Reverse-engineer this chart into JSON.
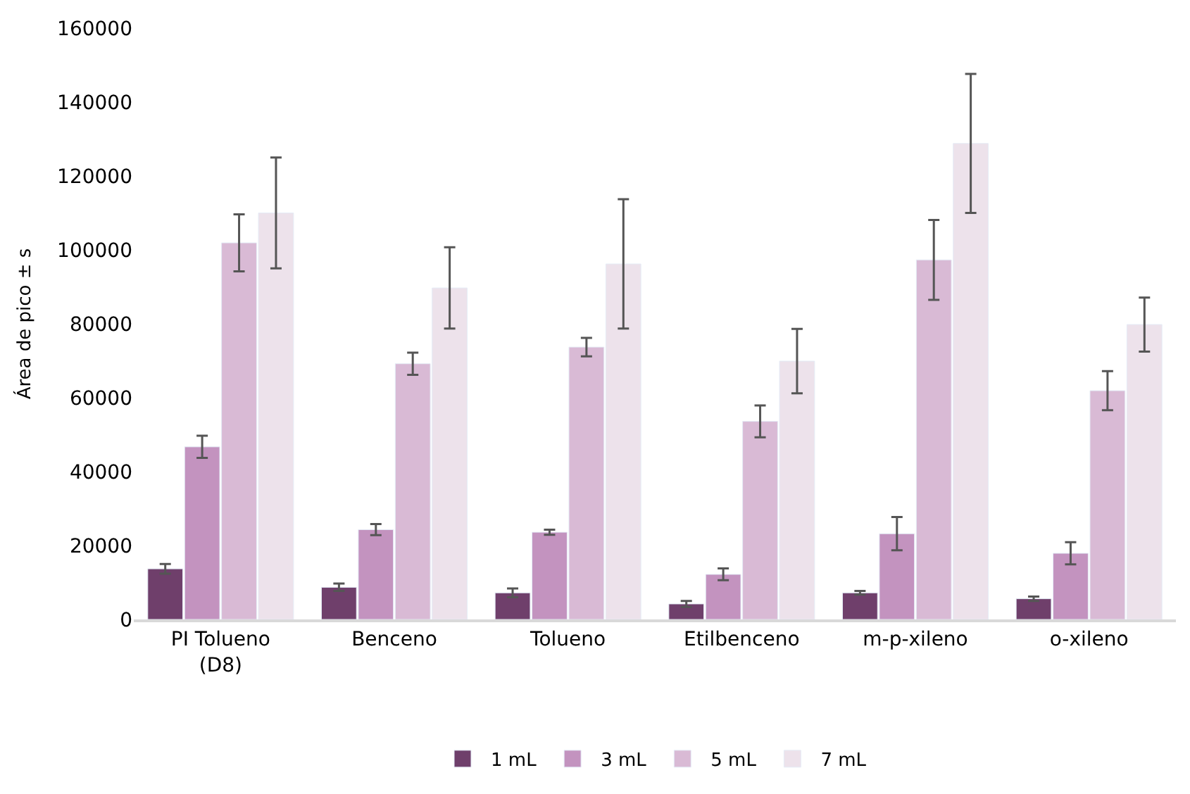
{
  "chart_data": {
    "type": "bar",
    "ylabel": "Área de pico ± s",
    "categories": [
      "PI Tolueno (D8)",
      "Benceno",
      "Tolueno",
      "Etilbenceno",
      "m-p-xileno",
      "o-xileno"
    ],
    "series": [
      {
        "name": "1 mL",
        "color": "#6f3f6b",
        "values": [
          13700,
          8700,
          7200,
          4200,
          7200,
          5600
        ],
        "errors": [
          1300,
          1000,
          1200,
          800,
          500,
          600
        ]
      },
      {
        "name": "3 mL",
        "color": "#c393bf",
        "values": [
          46700,
          24300,
          23600,
          12200,
          23200,
          17900
        ],
        "errors": [
          3000,
          1500,
          700,
          1600,
          4500,
          3000
        ]
      },
      {
        "name": "5 mL",
        "color": "#d9bad5",
        "values": [
          101900,
          69200,
          73700,
          53600,
          97300,
          61900
        ],
        "errors": [
          7700,
          3000,
          2500,
          4300,
          10800,
          5300
        ]
      },
      {
        "name": "7 mL",
        "color": "#ede2eb",
        "values": [
          110000,
          89700,
          96200,
          69900,
          128800,
          79800
        ],
        "errors": [
          15000,
          11000,
          17500,
          8700,
          18800,
          7300
        ]
      }
    ],
    "ylim": [
      0,
      160000
    ],
    "yticks": [
      0,
      20000,
      40000,
      60000,
      80000,
      100000,
      120000,
      140000,
      160000
    ],
    "grid": false,
    "legend": "bottom"
  }
}
